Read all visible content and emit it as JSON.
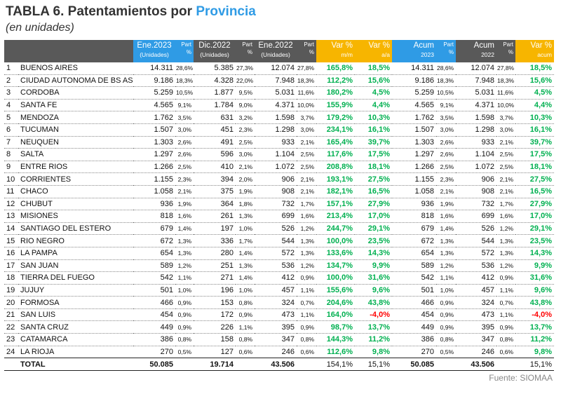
{
  "header": {
    "title": "TABLA 6. Patentamientos por",
    "title_highlight": "Provincia",
    "subtitle": "(en unidades)"
  },
  "table": {
    "columns": [
      {
        "label": ""
      },
      {
        "label": ""
      },
      {
        "label": "Ene.2023",
        "sub": "(Unidades)"
      },
      {
        "label": "Part",
        "sub": "%"
      },
      {
        "label": "Dic.2022",
        "sub": "(Unidades)"
      },
      {
        "label": "Part",
        "sub": "%"
      },
      {
        "label": "Ene.2022",
        "sub": "(Unidades)"
      },
      {
        "label": "Part",
        "sub": "%"
      },
      {
        "label": "Var %",
        "sub": "m/m"
      },
      {
        "label": "Var %",
        "sub": "a/a"
      },
      {
        "label": "Acum",
        "sub": "2023"
      },
      {
        "label": "Part",
        "sub": "%"
      },
      {
        "label": "Acum",
        "sub": "2022"
      },
      {
        "label": "Part",
        "sub": "%"
      },
      {
        "label": "Var %",
        "sub": "acum"
      }
    ],
    "rows": [
      [
        "1",
        "BUENOS AIRES",
        "14.311",
        "28,6%",
        "5.385",
        "27,3%",
        "12.074",
        "27,8%",
        "165,8%",
        "18,5%",
        "14.311",
        "28,6%",
        "12.074",
        "27,8%",
        "18,5%"
      ],
      [
        "2",
        "CIUDAD AUTONOMA DE BS AS",
        "9.186",
        "18,3%",
        "4.328",
        "22,0%",
        "7.948",
        "18,3%",
        "112,2%",
        "15,6%",
        "9.186",
        "18,3%",
        "7.948",
        "18,3%",
        "15,6%"
      ],
      [
        "3",
        "CORDOBA",
        "5.259",
        "10,5%",
        "1.877",
        "9,5%",
        "5.031",
        "11,6%",
        "180,2%",
        "4,5%",
        "5.259",
        "10,5%",
        "5.031",
        "11,6%",
        "4,5%"
      ],
      [
        "4",
        "SANTA FE",
        "4.565",
        "9,1%",
        "1.784",
        "9,0%",
        "4.371",
        "10,0%",
        "155,9%",
        "4,4%",
        "4.565",
        "9,1%",
        "4.371",
        "10,0%",
        "4,4%"
      ],
      [
        "5",
        "MENDOZA",
        "1.762",
        "3,5%",
        "631",
        "3,2%",
        "1.598",
        "3,7%",
        "179,2%",
        "10,3%",
        "1.762",
        "3,5%",
        "1.598",
        "3,7%",
        "10,3%"
      ],
      [
        "6",
        "TUCUMAN",
        "1.507",
        "3,0%",
        "451",
        "2,3%",
        "1.298",
        "3,0%",
        "234,1%",
        "16,1%",
        "1.507",
        "3,0%",
        "1.298",
        "3,0%",
        "16,1%"
      ],
      [
        "7",
        "NEUQUEN",
        "1.303",
        "2,6%",
        "491",
        "2,5%",
        "933",
        "2,1%",
        "165,4%",
        "39,7%",
        "1.303",
        "2,6%",
        "933",
        "2,1%",
        "39,7%"
      ],
      [
        "8",
        "SALTA",
        "1.297",
        "2,6%",
        "596",
        "3,0%",
        "1.104",
        "2,5%",
        "117,6%",
        "17,5%",
        "1.297",
        "2,6%",
        "1.104",
        "2,5%",
        "17,5%"
      ],
      [
        "9",
        "ENTRE RIOS",
        "1.266",
        "2,5%",
        "410",
        "2,1%",
        "1.072",
        "2,5%",
        "208,8%",
        "18,1%",
        "1.266",
        "2,5%",
        "1.072",
        "2,5%",
        "18,1%"
      ],
      [
        "10",
        "CORRIENTES",
        "1.155",
        "2,3%",
        "394",
        "2,0%",
        "906",
        "2,1%",
        "193,1%",
        "27,5%",
        "1.155",
        "2,3%",
        "906",
        "2,1%",
        "27,5%"
      ],
      [
        "11",
        "CHACO",
        "1.058",
        "2,1%",
        "375",
        "1,9%",
        "908",
        "2,1%",
        "182,1%",
        "16,5%",
        "1.058",
        "2,1%",
        "908",
        "2,1%",
        "16,5%"
      ],
      [
        "12",
        "CHUBUT",
        "936",
        "1,9%",
        "364",
        "1,8%",
        "732",
        "1,7%",
        "157,1%",
        "27,9%",
        "936",
        "1,9%",
        "732",
        "1,7%",
        "27,9%"
      ],
      [
        "13",
        "MISIONES",
        "818",
        "1,6%",
        "261",
        "1,3%",
        "699",
        "1,6%",
        "213,4%",
        "17,0%",
        "818",
        "1,6%",
        "699",
        "1,6%",
        "17,0%"
      ],
      [
        "14",
        "SANTIAGO DEL ESTERO",
        "679",
        "1,4%",
        "197",
        "1,0%",
        "526",
        "1,2%",
        "244,7%",
        "29,1%",
        "679",
        "1,4%",
        "526",
        "1,2%",
        "29,1%"
      ],
      [
        "15",
        "RIO NEGRO",
        "672",
        "1,3%",
        "336",
        "1,7%",
        "544",
        "1,3%",
        "100,0%",
        "23,5%",
        "672",
        "1,3%",
        "544",
        "1,3%",
        "23,5%"
      ],
      [
        "16",
        "LA PAMPA",
        "654",
        "1,3%",
        "280",
        "1,4%",
        "572",
        "1,3%",
        "133,6%",
        "14,3%",
        "654",
        "1,3%",
        "572",
        "1,3%",
        "14,3%"
      ],
      [
        "17",
        "SAN JUAN",
        "589",
        "1,2%",
        "251",
        "1,3%",
        "536",
        "1,2%",
        "134,7%",
        "9,9%",
        "589",
        "1,2%",
        "536",
        "1,2%",
        "9,9%"
      ],
      [
        "18",
        "TIERRA DEL FUEGO",
        "542",
        "1,1%",
        "271",
        "1,4%",
        "412",
        "0,9%",
        "100,0%",
        "31,6%",
        "542",
        "1,1%",
        "412",
        "0,9%",
        "31,6%"
      ],
      [
        "19",
        "JUJUY",
        "501",
        "1,0%",
        "196",
        "1,0%",
        "457",
        "1,1%",
        "155,6%",
        "9,6%",
        "501",
        "1,0%",
        "457",
        "1,1%",
        "9,6%"
      ],
      [
        "20",
        "FORMOSA",
        "466",
        "0,9%",
        "153",
        "0,8%",
        "324",
        "0,7%",
        "204,6%",
        "43,8%",
        "466",
        "0,9%",
        "324",
        "0,7%",
        "43,8%"
      ],
      [
        "21",
        "SAN LUIS",
        "454",
        "0,9%",
        "172",
        "0,9%",
        "473",
        "1,1%",
        "164,0%",
        "-4,0%",
        "454",
        "0,9%",
        "473",
        "1,1%",
        "-4,0%"
      ],
      [
        "22",
        "SANTA CRUZ",
        "449",
        "0,9%",
        "226",
        "1,1%",
        "395",
        "0,9%",
        "98,7%",
        "13,7%",
        "449",
        "0,9%",
        "395",
        "0,9%",
        "13,7%"
      ],
      [
        "23",
        "CATAMARCA",
        "386",
        "0,8%",
        "158",
        "0,8%",
        "347",
        "0,8%",
        "144,3%",
        "11,2%",
        "386",
        "0,8%",
        "347",
        "0,8%",
        "11,2%"
      ],
      [
        "24",
        "LA RIOJA",
        "270",
        "0,5%",
        "127",
        "0,6%",
        "246",
        "0,6%",
        "112,6%",
        "9,8%",
        "270",
        "0,5%",
        "246",
        "0,6%",
        "9,8%"
      ]
    ],
    "total": {
      "label": "TOTAL",
      "ene2023": "50.085",
      "dic2022": "19.714",
      "ene2022": "43.506",
      "var_mm": "154,1%",
      "var_aa": "15,1%",
      "acum2023": "50.085",
      "acum2022": "43.506",
      "var_acum": "15,1%"
    }
  },
  "footer": {
    "source": "Fuente: SIOMAA"
  }
}
